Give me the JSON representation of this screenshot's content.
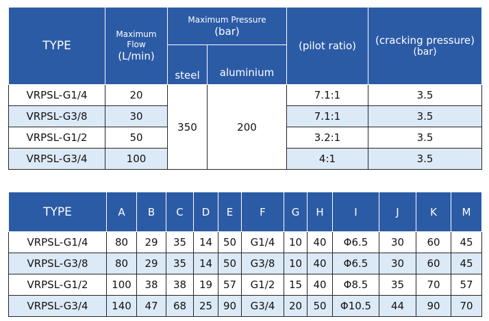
{
  "table1": {
    "header": {
      "type": "TYPE",
      "flow_title": "Maximum Flow",
      "flow_unit": "(L/min)",
      "pressure_title": "Maximum Pressure",
      "pressure_unit": "(bar)",
      "steel": "steel",
      "aluminium": "aluminium",
      "pilot": "(pilot ratio)",
      "cracking_title": "(cracking pressure)",
      "cracking_unit": "(bar)"
    },
    "rows": [
      [
        "VRPSL-G1/4",
        20,
        "7.1:1",
        3.5
      ],
      [
        "VRPSL-G3/8",
        30,
        "7.1:1",
        3.5
      ],
      [
        "VRPSL-G1/2",
        50,
        "3.2:1",
        3.5
      ],
      [
        "VRPSL-G3/4",
        100,
        "4:1",
        3.5
      ]
    ],
    "steel": 350,
    "aluminium": 200
  },
  "table2": {
    "header": [
      "TYPE",
      "A",
      "B",
      "C",
      "D",
      "E",
      "F",
      "G",
      "H",
      "I",
      "J",
      "K",
      "M"
    ],
    "rows": [
      [
        "VRPSL-G1/4",
        80,
        29,
        35,
        14,
        50,
        "G1/4",
        10,
        40,
        "Φ6.5",
        30,
        60,
        45
      ],
      [
        "VRPSL-G3/8",
        80,
        29,
        35,
        14,
        50,
        "G3/8",
        10,
        40,
        "Φ6.5",
        30,
        60,
        45
      ],
      [
        "VRPSL-G1/2",
        100,
        38,
        38,
        19,
        57,
        "G1/2",
        15,
        40,
        "Φ8.5",
        35,
        70,
        57
      ],
      [
        "VRPSL-G3/4",
        140,
        47,
        68,
        25,
        90,
        "G3/4",
        20,
        50,
        "Φ10.5",
        44,
        90,
        70
      ]
    ]
  }
}
